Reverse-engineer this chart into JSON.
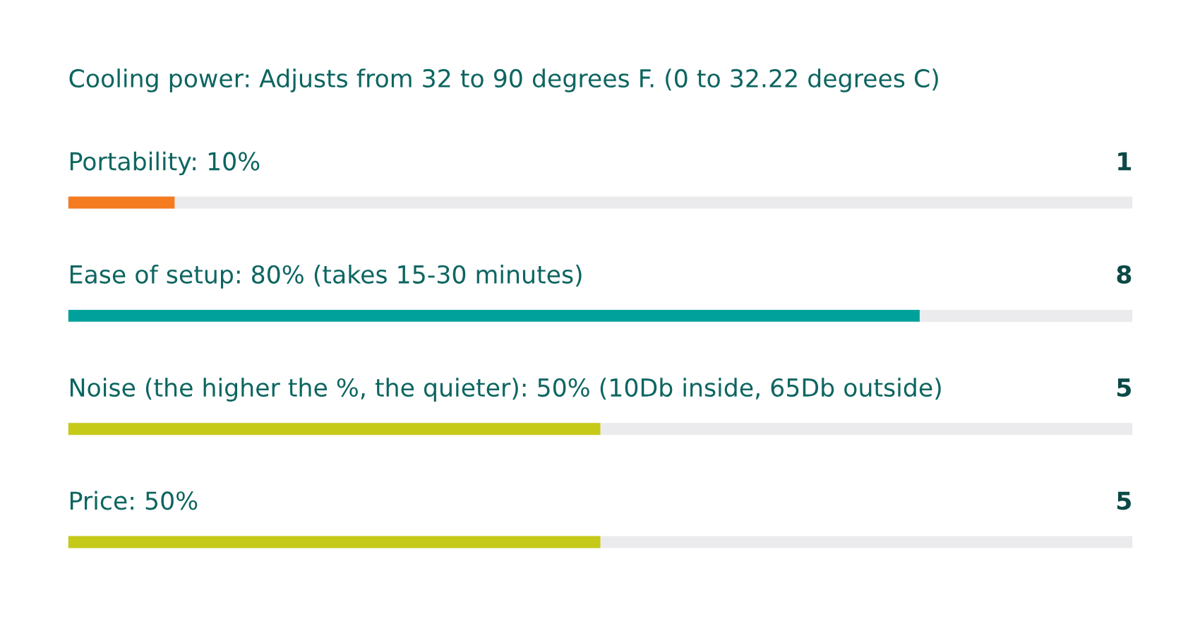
{
  "chart_data": {
    "type": "bar",
    "orientation": "horizontal",
    "title": "Cooling power: Adjusts from 32 to 90 degrees F. (0 to 32.22 degrees C)",
    "categories": [
      "Portability: 10%",
      "Ease of setup: 80% (takes 15-30 minutes)",
      "Noise (the higher the %, the quieter): 50% (10Db inside, 65Db outside)",
      "Price: 50%"
    ],
    "series": [
      {
        "colors": [
          "#f47b20",
          "#00a19a",
          "#c5c918",
          "#c5c918"
        ],
        "values": [
          1,
          8,
          5,
          5
        ]
      }
    ],
    "data_labels": true,
    "xlim": [
      0,
      10
    ],
    "tick_labels": "y",
    "grid": "y"
  }
}
